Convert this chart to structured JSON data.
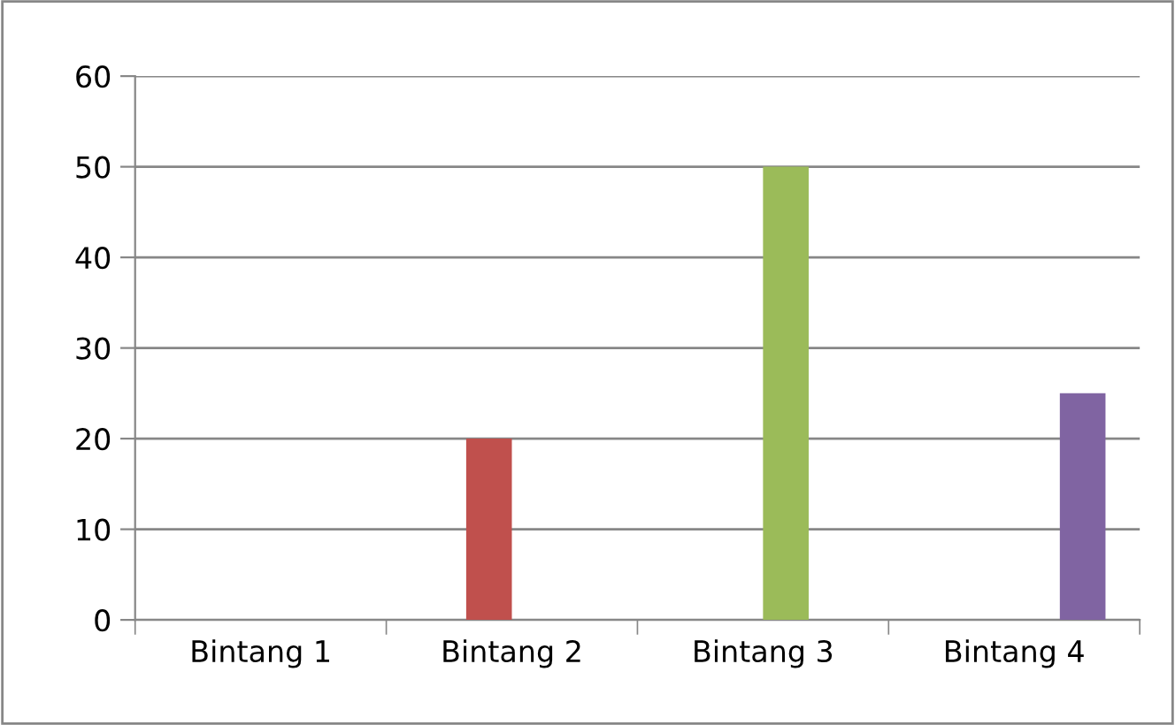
{
  "chart_data": {
    "type": "bar",
    "categories": [
      "Bintang 1",
      "Bintang 2",
      "Bintang 3",
      "Bintang 4"
    ],
    "series": [
      {
        "color": "#4f81bd",
        "values": [
          0,
          null,
          null,
          null
        ]
      },
      {
        "color": "#c0504d",
        "values": [
          null,
          20,
          null,
          null
        ]
      },
      {
        "color": "#9bbb59",
        "values": [
          null,
          null,
          50,
          null
        ]
      },
      {
        "color": "#8064a2",
        "values": [
          null,
          null,
          null,
          25
        ]
      }
    ],
    "ylim": [
      0,
      60
    ],
    "yticks": [
      0,
      10,
      20,
      30,
      40,
      50,
      60
    ],
    "grid": "y"
  }
}
